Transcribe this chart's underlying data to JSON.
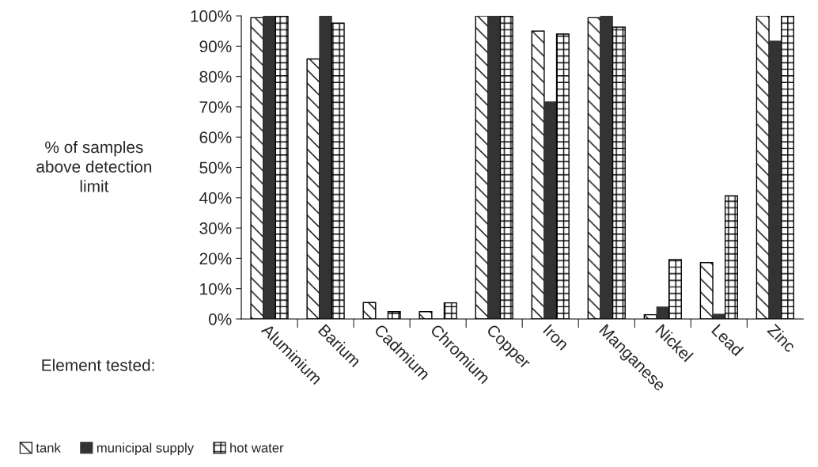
{
  "chart_data": {
    "type": "bar",
    "xlabel": "Element tested:",
    "ylabel": "% of samples\nabove detection\nlimit",
    "categories": [
      "Aluminium",
      "Barium",
      "Cadmium",
      "Chromium",
      "Copper",
      "Iron",
      "Manganese",
      "Nickel",
      "Lead",
      "Zinc"
    ],
    "series": [
      {
        "name": "tank",
        "color": "#ffffff",
        "values": [
          99.4,
          85.8,
          5.4,
          2.4,
          100,
          95.0,
          99.4,
          1.4,
          18.6,
          100
        ]
      },
      {
        "name": "municipal supply",
        "color": "#333333",
        "values": [
          100,
          100,
          0,
          0,
          100,
          71.7,
          100,
          4.0,
          1.6,
          91.7
        ]
      },
      {
        "name": "hot water",
        "color": "#ffffff",
        "values": [
          100,
          97.6,
          2.4,
          5.3,
          100,
          94.0,
          96.3,
          19.6,
          40.6,
          100
        ]
      }
    ],
    "ylim": [
      0,
      100
    ],
    "yticks": [
      {
        "value": 0,
        "label": "0%"
      },
      {
        "value": 10,
        "label": "10%"
      },
      {
        "value": 20,
        "label": "20%"
      },
      {
        "value": 30,
        "label": "30%"
      },
      {
        "value": 40,
        "label": "40%"
      },
      {
        "value": 50,
        "label": "50%"
      },
      {
        "value": 60,
        "label": "60%"
      },
      {
        "value": 70,
        "label": "70%"
      },
      {
        "value": 80,
        "label": "80%"
      },
      {
        "value": 90,
        "label": "90%"
      },
      {
        "value": 100,
        "label": "100%"
      }
    ],
    "grid": false,
    "legend": "bottom left"
  }
}
